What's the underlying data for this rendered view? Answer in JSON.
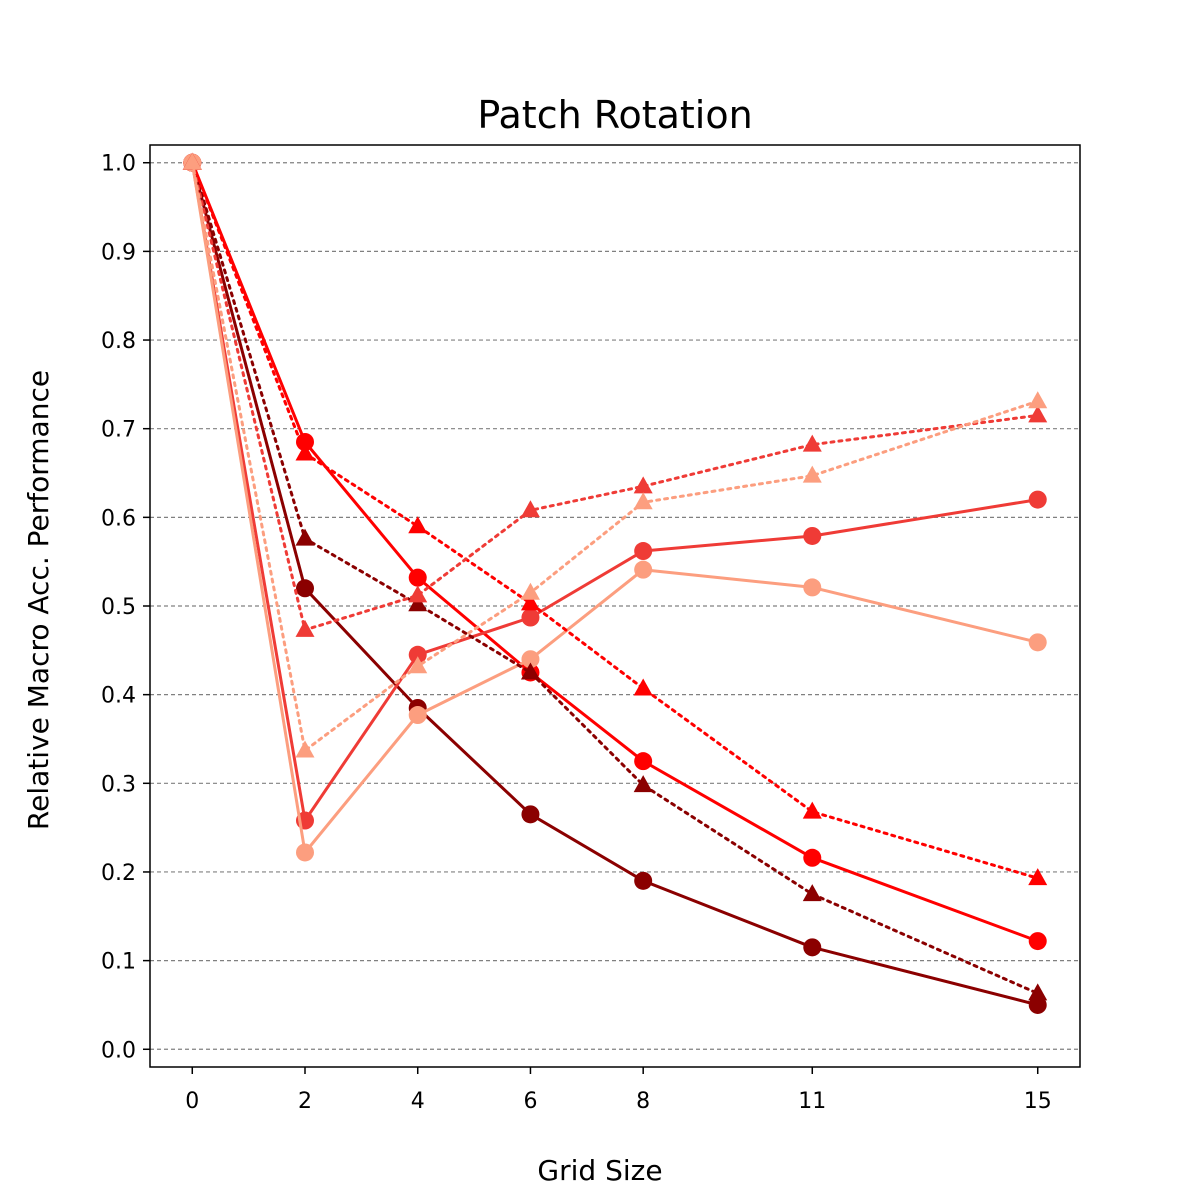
{
  "chart_data": {
    "type": "line",
    "title": "Patch Rotation",
    "xlabel": "Grid Size",
    "ylabel": "Relative Macro Acc. Performance",
    "x": [
      0,
      2,
      4,
      6,
      8,
      11,
      15
    ],
    "xticks": [
      "0",
      "2",
      "4",
      "6",
      "8",
      "11",
      "15"
    ],
    "yticks": [
      "0.0",
      "0.1",
      "0.2",
      "0.3",
      "0.4",
      "0.5",
      "0.6",
      "0.7",
      "0.8",
      "0.9",
      "1.0"
    ],
    "xlim": [
      -0.75,
      15.75
    ],
    "ylim": [
      -0.02,
      1.02
    ],
    "grid": "horizontal-dashed",
    "series": [
      {
        "color": "#8b0000",
        "linestyle": "solid",
        "marker": "circle",
        "values": [
          1.0,
          0.52,
          0.385,
          0.265,
          0.19,
          0.115,
          0.05
        ]
      },
      {
        "color": "#ff0000",
        "linestyle": "solid",
        "marker": "circle",
        "values": [
          1.0,
          0.685,
          0.532,
          0.425,
          0.325,
          0.216,
          0.122
        ]
      },
      {
        "color": "#ef3b36",
        "linestyle": "solid",
        "marker": "circle",
        "values": [
          1.0,
          0.258,
          0.445,
          0.487,
          0.562,
          0.579,
          0.62
        ]
      },
      {
        "color": "#fc9e7f",
        "linestyle": "solid",
        "marker": "circle",
        "values": [
          1.0,
          0.222,
          0.377,
          0.44,
          0.541,
          0.521,
          0.459
        ]
      },
      {
        "color": "#8b0000",
        "linestyle": "dotted",
        "marker": "triangle",
        "values": [
          1.0,
          0.576,
          0.502,
          0.425,
          0.298,
          0.175,
          0.063
        ]
      },
      {
        "color": "#ff0000",
        "linestyle": "dotted",
        "marker": "triangle",
        "values": [
          1.0,
          0.672,
          0.59,
          0.503,
          0.407,
          0.268,
          0.193
        ]
      },
      {
        "color": "#ef3b36",
        "linestyle": "dotted",
        "marker": "triangle",
        "values": [
          1.0,
          0.473,
          0.512,
          0.608,
          0.635,
          0.682,
          0.715
        ]
      },
      {
        "color": "#fc9e7f",
        "linestyle": "dotted",
        "marker": "triangle",
        "values": [
          1.0,
          0.337,
          0.432,
          0.515,
          0.617,
          0.647,
          0.731
        ]
      }
    ]
  }
}
